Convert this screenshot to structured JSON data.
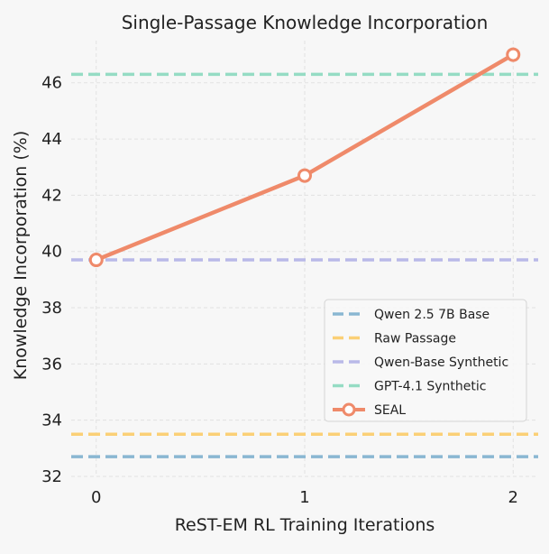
{
  "chart_data": {
    "type": "line",
    "title": "Single-Passage Knowledge Incorporation",
    "xlabel": "ReST-EM RL Training Iterations",
    "ylabel": "Knowledge Incorporation (%)",
    "x": [
      0,
      1,
      2
    ],
    "x_ticks": [
      "0",
      "1",
      "2"
    ],
    "y_ticks": [
      "32",
      "34",
      "36",
      "38",
      "40",
      "42",
      "44",
      "46"
    ],
    "xlim": [
      -0.12,
      2.12
    ],
    "ylim": [
      32,
      47.5
    ],
    "grid": true,
    "legend_position": "right-center",
    "series": [
      {
        "name": "SEAL",
        "values": [
          39.7,
          42.7,
          47.0
        ],
        "color": "#ef8a6a",
        "style": "solid-markers"
      }
    ],
    "baselines": [
      {
        "name": "Qwen 2.5 7B Base",
        "value": 32.7,
        "color": "#8ab7d2"
      },
      {
        "name": "Raw Passage",
        "value": 33.5,
        "color": "#fbd076"
      },
      {
        "name": "Qwen-Base Synthetic",
        "value": 39.7,
        "color": "#b9b9e8"
      },
      {
        "name": "GPT-4.1 Synthetic",
        "value": 46.3,
        "color": "#95dcc4"
      }
    ]
  }
}
